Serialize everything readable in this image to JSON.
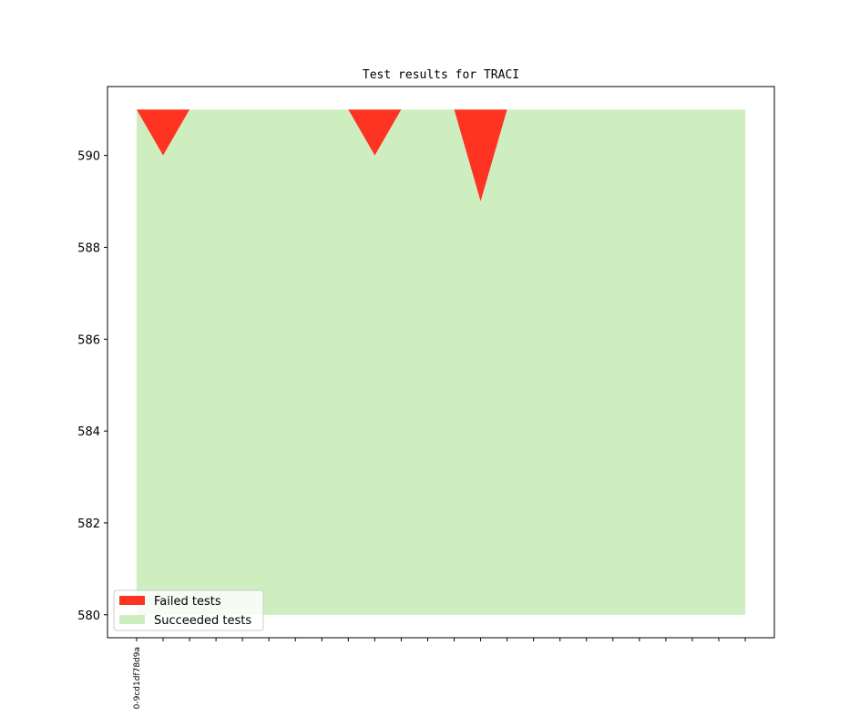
{
  "chart_data": {
    "type": "area",
    "title": "Test results for TRACI",
    "xlabel": "",
    "ylabel": "",
    "ylim": [
      579.5,
      591.5
    ],
    "xlim": [
      -1.1,
      24.1
    ],
    "yticks": [
      580,
      582,
      584,
      586,
      588,
      590
    ],
    "x_tick_count": 24,
    "x_tick_labels": [
      "0-9cd1df78d9a"
    ],
    "colors": {
      "failed": "#ff3322",
      "succeeded": "#cfeec0"
    },
    "series": [
      {
        "name": "Failed tests",
        "values": [
          0,
          1,
          0,
          0,
          0,
          0,
          0,
          0,
          0,
          1,
          0,
          0,
          0,
          2,
          0,
          0,
          0,
          0,
          0,
          0,
          0,
          0,
          0,
          0
        ]
      },
      {
        "name": "Succeeded tests",
        "values": [
          591,
          590,
          591,
          591,
          591,
          591,
          591,
          591,
          591,
          590,
          591,
          591,
          591,
          589,
          591,
          591,
          591,
          591,
          591,
          591,
          591,
          591,
          591,
          591
        ]
      }
    ],
    "baseline": 580,
    "total": 591,
    "legend": {
      "position": "lower-left"
    }
  }
}
